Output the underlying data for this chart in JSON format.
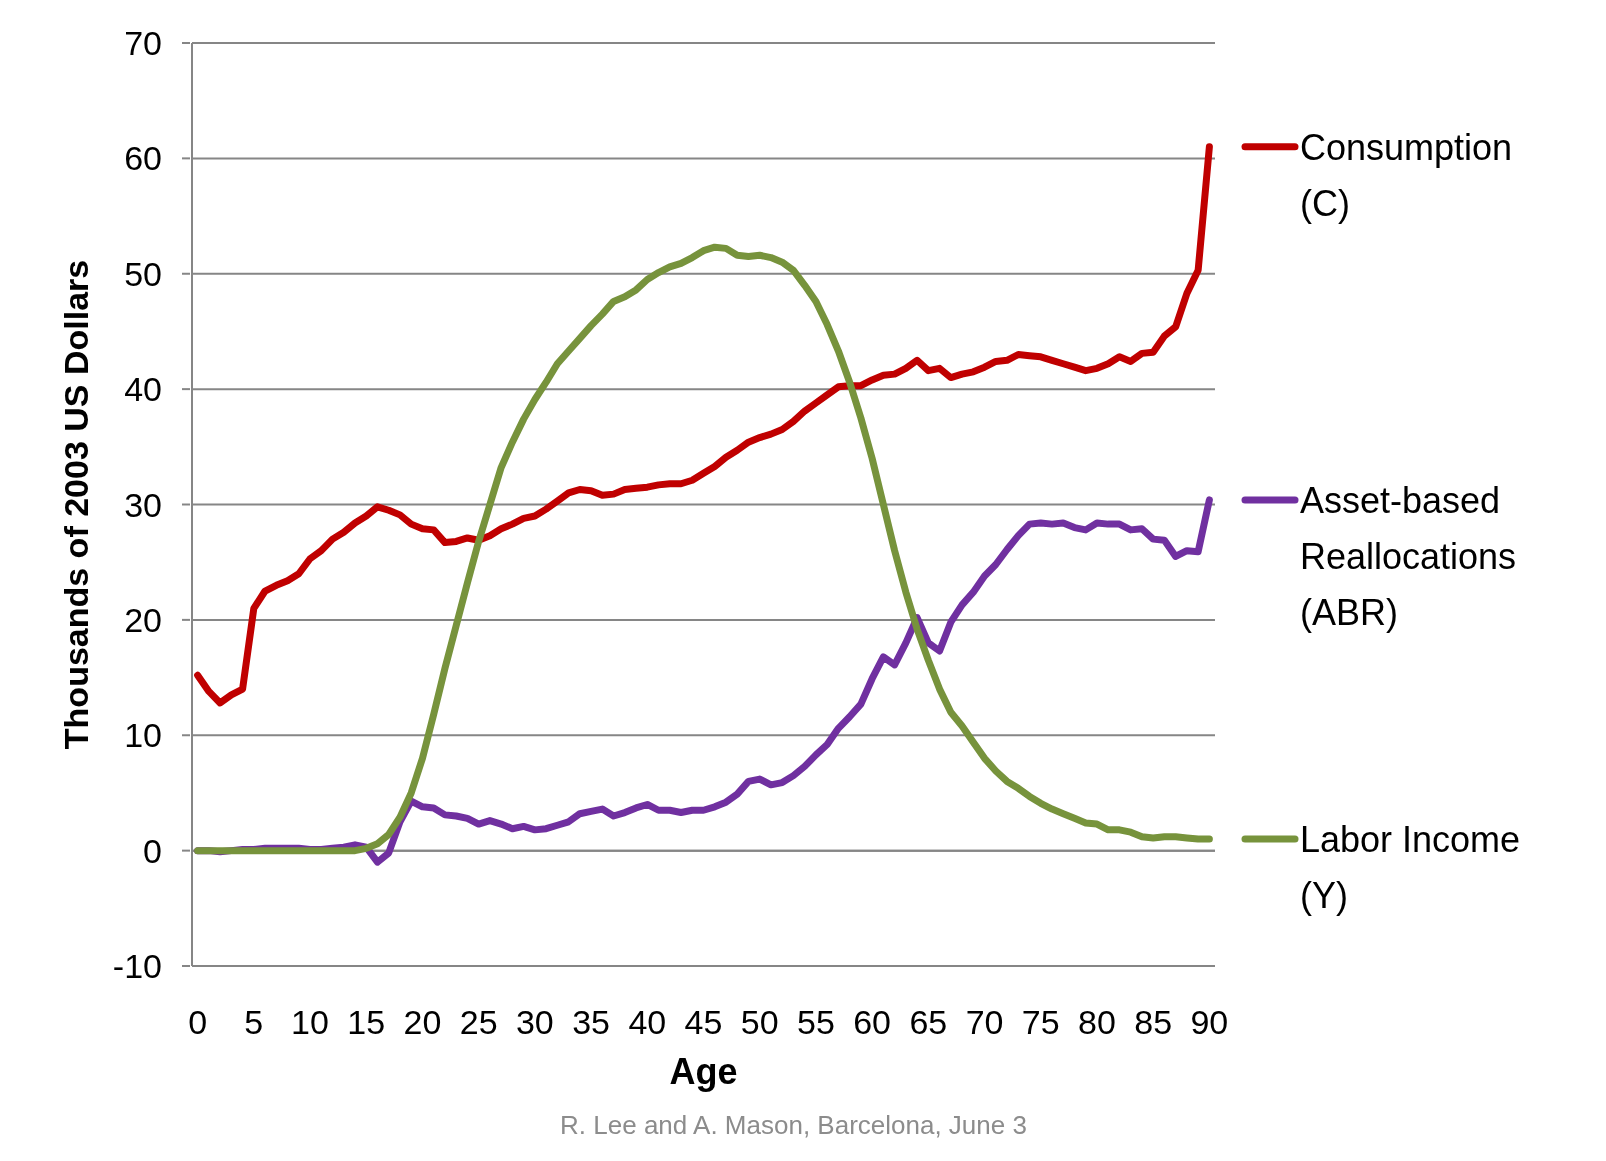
{
  "chart_data": {
    "type": "line",
    "xlabel": "Age",
    "ylabel": "Thousands of 2003 US Dollars",
    "annotations": [
      "R. Lee and A. Mason, Barcelona, June 3"
    ],
    "x": [
      0,
      1,
      2,
      3,
      4,
      5,
      6,
      7,
      8,
      9,
      10,
      11,
      12,
      13,
      14,
      15,
      16,
      17,
      18,
      19,
      20,
      21,
      22,
      23,
      24,
      25,
      26,
      27,
      28,
      29,
      30,
      31,
      32,
      33,
      34,
      35,
      36,
      37,
      38,
      39,
      40,
      41,
      42,
      43,
      44,
      45,
      46,
      47,
      48,
      49,
      50,
      51,
      52,
      53,
      54,
      55,
      56,
      57,
      58,
      59,
      60,
      61,
      62,
      63,
      64,
      65,
      66,
      67,
      68,
      69,
      70,
      71,
      72,
      73,
      74,
      75,
      76,
      77,
      78,
      79,
      80,
      81,
      82,
      83,
      84,
      85,
      86,
      87,
      88,
      89,
      90
    ],
    "xlim": [
      -0.5,
      90.5
    ],
    "xticks": [
      0,
      5,
      10,
      15,
      20,
      25,
      30,
      35,
      40,
      45,
      50,
      55,
      60,
      65,
      70,
      75,
      80,
      85,
      90
    ],
    "ylim": [
      -10,
      70
    ],
    "yticks": [
      -10,
      0,
      10,
      20,
      30,
      40,
      50,
      60,
      70
    ],
    "grid": "y",
    "legend": "right",
    "line_style": "solid",
    "marker": "none",
    "series": [
      {
        "name": "Consumption (C)",
        "color": "#c00000",
        "values": [
          15.2,
          13.8,
          12.8,
          13.5,
          14,
          21,
          22.5,
          23,
          23.4,
          24,
          25.3,
          26,
          27,
          27.6,
          28.4,
          29,
          29.8,
          29.5,
          29.1,
          28.3,
          27.9,
          27.8,
          26.7,
          26.8,
          27.1,
          26.9,
          27.3,
          27.9,
          28.3,
          28.8,
          29,
          29.6,
          30.3,
          31,
          31.3,
          31.2,
          30.8,
          30.9,
          31.3,
          31.4,
          31.5,
          31.7,
          31.8,
          31.8,
          32.1,
          32.7,
          33.3,
          34.1,
          34.7,
          35.4,
          35.8,
          36.1,
          36.5,
          37.2,
          38.1,
          38.8,
          39.5,
          40.2,
          40.3,
          40.3,
          40.8,
          41.2,
          41.3,
          41.8,
          42.5,
          41.6,
          41.8,
          41,
          41.3,
          41.5,
          41.9,
          42.4,
          42.5,
          43,
          42.9,
          42.8,
          42.5,
          42.2,
          41.9,
          41.6,
          41.8,
          42.2,
          42.8,
          42.4,
          43.1,
          43.2,
          44.6,
          45.4,
          48.3,
          50.3,
          61
        ]
      },
      {
        "name": "Asset-based Reallocations (ABR)",
        "color": "#7030a0",
        "values": [
          0,
          0,
          -0.1,
          0,
          0.1,
          0.1,
          0.2,
          0.2,
          0.2,
          0.2,
          0.1,
          0.1,
          0.2,
          0.3,
          0.5,
          0.3,
          -1,
          -0.2,
          2.5,
          4.3,
          3.8,
          3.7,
          3.1,
          3,
          2.8,
          2.3,
          2.6,
          2.3,
          1.9,
          2.1,
          1.8,
          1.9,
          2.2,
          2.5,
          3.2,
          3.4,
          3.6,
          3,
          3.3,
          3.7,
          4,
          3.5,
          3.5,
          3.3,
          3.5,
          3.5,
          3.8,
          4.2,
          4.9,
          6,
          6.2,
          5.7,
          5.9,
          6.5,
          7.3,
          8.3,
          9.2,
          10.6,
          11.6,
          12.7,
          14.9,
          16.8,
          16.1,
          18,
          20.2,
          18,
          17.3,
          19.8,
          21.3,
          22.4,
          23.8,
          24.8,
          26.1,
          27.3,
          28.3,
          28.4,
          28.3,
          28.4,
          28,
          27.8,
          28.4,
          28.3,
          28.3,
          27.8,
          27.9,
          27,
          26.9,
          25.5,
          26,
          25.9,
          30.4
        ]
      },
      {
        "name": "Labor Income (Y)",
        "color": "#77933c",
        "values": [
          0,
          0,
          0,
          0,
          0,
          0,
          0,
          0,
          0,
          0,
          0,
          0,
          0,
          0,
          0,
          0.2,
          0.6,
          1.4,
          2.9,
          5,
          8,
          11.8,
          15.8,
          19.5,
          23.2,
          26.8,
          30,
          33.2,
          35.4,
          37.4,
          39.1,
          40.6,
          42.2,
          43.3,
          44.4,
          45.5,
          46.5,
          47.6,
          48,
          48.6,
          49.5,
          50.1,
          50.6,
          50.9,
          51.4,
          52,
          52.3,
          52.2,
          51.6,
          51.5,
          51.6,
          51.4,
          51,
          50.3,
          49,
          47.6,
          45.6,
          43.3,
          40.6,
          37.5,
          34,
          30,
          26,
          22.4,
          19.2,
          16.5,
          14,
          12,
          10.8,
          9.4,
          8,
          6.9,
          6,
          5.4,
          4.7,
          4.1,
          3.6,
          3.2,
          2.8,
          2.4,
          2.3,
          1.8,
          1.8,
          1.6,
          1.2,
          1.1,
          1.2,
          1.2,
          1.1,
          1,
          1
        ]
      }
    ]
  }
}
